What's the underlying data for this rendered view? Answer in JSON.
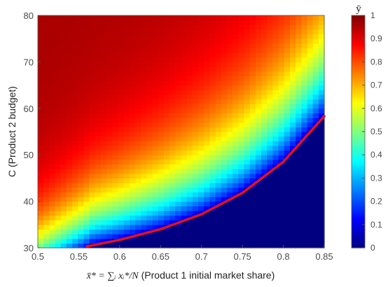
{
  "chart_data": {
    "type": "heatmap",
    "x_range": [
      0.5,
      0.85
    ],
    "y_range": [
      30,
      80
    ],
    "x_ticks": [
      "0.5",
      "0.55",
      "0.6",
      "0.65",
      "0.7",
      "0.75",
      "0.8",
      "0.85"
    ],
    "y_ticks": [
      "30",
      "40",
      "50",
      "60",
      "70",
      "80"
    ],
    "xlabel_math": "x̄* = ∑ᵢ xᵢ*/N",
    "xlabel_text": " (Product 1 initial market share)",
    "ylabel": "C (Product 2 budget)",
    "colorbar": {
      "title": "ȳ",
      "colormap": "jet",
      "range": [
        0,
        1
      ],
      "ticks": [
        "0",
        "0.1",
        "0.2",
        "0.3",
        "0.4",
        "0.5",
        "0.6",
        "0.7",
        "0.8",
        "0.9",
        "1"
      ]
    },
    "grid": false,
    "boundary_curve": {
      "color": "#e8101a",
      "x": [
        0.56,
        0.6,
        0.65,
        0.7,
        0.75,
        0.8,
        0.85
      ],
      "y": [
        30.3,
        31.7,
        34.0,
        37.2,
        41.8,
        48.5,
        58.3
      ]
    },
    "surface_notes": "zero-region below the curve; value rises from ~0.1 just above the curve to ~0.95 at low x / high C"
  }
}
